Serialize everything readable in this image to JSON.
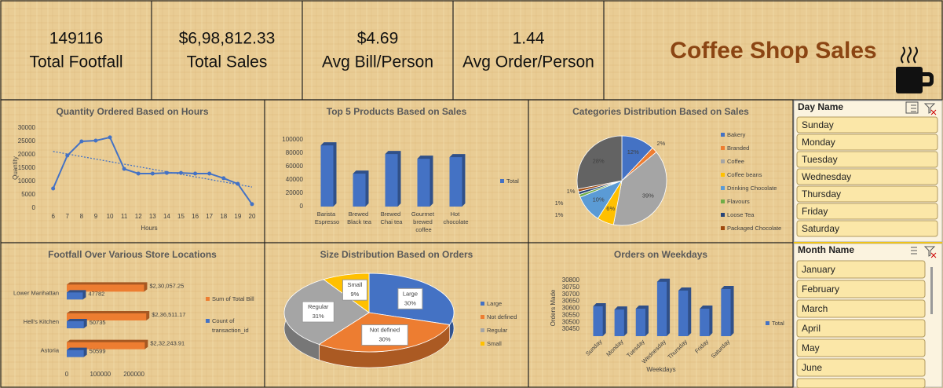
{
  "kpis": [
    {
      "value": "149116",
      "label": "Total Footfall"
    },
    {
      "value": "$6,98,812.33",
      "label": "Total Sales"
    },
    {
      "value": "$4.69",
      "label": "Avg Bill/Person"
    },
    {
      "value": "1.44",
      "label": "Avg Order/Person"
    }
  ],
  "title": "Coffee Shop Sales",
  "chart_data": [
    {
      "type": "line",
      "title": "Quantity Ordered Based on Hours",
      "x": [
        6,
        7,
        8,
        9,
        10,
        11,
        12,
        13,
        14,
        15,
        16,
        17,
        18,
        19,
        20
      ],
      "values": [
        7350,
        19700,
        25000,
        25300,
        26500,
        14700,
        12950,
        12950,
        13200,
        13200,
        12950,
        12950,
        11200,
        9100,
        1500
      ],
      "color": "#4472c4",
      "trendline": true,
      "xlabel": "Hours",
      "ylabel": "Quantity",
      "xlim": [
        5.3,
        20.5
      ],
      "xticks": [
        6,
        7,
        8,
        9,
        10,
        11,
        12,
        13,
        14,
        15,
        16,
        17,
        18,
        19,
        20
      ],
      "ylim": [
        0,
        30000
      ],
      "yticks": [
        0,
        5000,
        10000,
        15000,
        20000,
        25000,
        30000
      ]
    },
    {
      "type": "bar",
      "title": "Top 5 Products Based on Sales",
      "categories": [
        "Barista Espresso",
        "Brewed Black tea",
        "Brewed Chai tea",
        "Gourmet brewed coffee",
        "Hot chocolate"
      ],
      "series": [
        {
          "name": "Total",
          "color": "#4472c4",
          "values": [
            91600,
            49300,
            78700,
            71600,
            74000
          ]
        }
      ],
      "ylim": [
        0,
        100000
      ],
      "yticks": [
        0,
        20000,
        40000,
        60000,
        80000,
        100000
      ],
      "legend": "right"
    },
    {
      "type": "pie",
      "title": "Categories Distribution Based on Sales",
      "categories": [
        "Bakery",
        "Branded",
        "Coffee",
        "Coffee beans",
        "Drinking Chocolate",
        "Flavours",
        "Loose Tea",
        "Packaged Chocolate",
        null
      ],
      "values": [
        12,
        2,
        39,
        6,
        10,
        1,
        1,
        1,
        28
      ],
      "value_labels": [
        "12%",
        "2%",
        "39%",
        "6%",
        "10%",
        "1%",
        "1%",
        "1%",
        "28%"
      ],
      "colors": [
        "#4472c4",
        "#ed7d31",
        "#a5a5a5",
        "#ffc000",
        "#5b9bd5",
        "#70ad47",
        "#264478",
        "#9e480e",
        "#636363"
      ],
      "legend": "right"
    },
    {
      "type": "bar",
      "horizontal": true,
      "title": "Footfall Over Various Store Locations",
      "categories": [
        "Lower Manhattan",
        "Hell's Kitchen",
        "Astoria"
      ],
      "series": [
        {
          "name": "Sum of Total Bill",
          "color": "#ed7d31",
          "values": [
            230057.25,
            236511.17,
            232243.91
          ],
          "value_labels": [
            "$2,30,057.25",
            "$2,36,511.17",
            "$2,32,243.91"
          ]
        },
        {
          "name": "Count of transaction_id",
          "color": "#4472c4",
          "values": [
            47782,
            50735,
            50599
          ]
        }
      ],
      "xlim": [
        0,
        250000
      ],
      "xticks": [
        0,
        100000,
        200000
      ],
      "legend": "right"
    },
    {
      "type": "pie",
      "three_d": true,
      "title": "Size Distribution Based on Orders",
      "categories": [
        "Large",
        "Not defined",
        "Regular",
        "Small"
      ],
      "values": [
        30,
        30,
        31,
        9
      ],
      "value_labels": [
        "30%",
        "30%",
        "31%",
        "9%"
      ],
      "colors": [
        "#4472c4",
        "#ed7d31",
        "#a5a5a5",
        "#ffc000"
      ],
      "legend": "right"
    },
    {
      "type": "bar",
      "title": "Orders on Weekdays",
      "categories": [
        "Sunday",
        "Monday",
        "Tuesday",
        "Wednesday",
        "Thursday",
        "Friday",
        "Saturday"
      ],
      "series": [
        {
          "name": "Total",
          "color": "#4472c4",
          "values": [
            30614,
            30591,
            30597,
            30790,
            30727,
            30597,
            30738
          ]
        }
      ],
      "xlabel": "Weekdays",
      "ylabel": "Orders Made",
      "ylim": [
        30400,
        30800
      ],
      "yticks": [
        30450,
        30500,
        30550,
        30600,
        30650,
        30700,
        30750,
        30800
      ],
      "legend": "right"
    }
  ],
  "slicers": [
    {
      "title": "Day Name",
      "items": [
        "Sunday",
        "Monday",
        "Tuesday",
        "Wednesday",
        "Thursday",
        "Friday",
        "Saturday"
      ]
    },
    {
      "title": "Month Name",
      "items": [
        "January",
        "February",
        "March",
        "April",
        "May",
        "June"
      ]
    }
  ]
}
